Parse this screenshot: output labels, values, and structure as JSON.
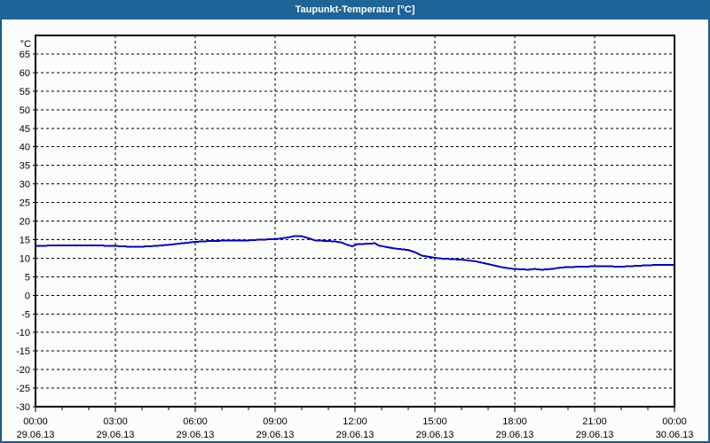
{
  "window": {
    "title": "Taupunkt-Temperatur [°C]",
    "title_bar_color": "#1E6496",
    "border_color": "#1A5A87",
    "background_color": "#FBFDFA"
  },
  "chart_data": {
    "type": "line",
    "title": "Taupunkt-Temperatur [°C]",
    "y_unit_label": "°C",
    "ylim": [
      -30,
      70
    ],
    "y_tick_step": 5,
    "y_ticks": [
      65,
      60,
      55,
      50,
      45,
      40,
      35,
      30,
      25,
      20,
      15,
      10,
      5,
      0,
      -5,
      -10,
      -15,
      -20,
      -25,
      -30
    ],
    "x_hours_range": [
      0,
      24
    ],
    "x_minor_step_hours": 1,
    "x_major_step_hours": 3,
    "grid": "dashed",
    "legend": "none",
    "line_color": "#0000CC",
    "x_major_ticks": [
      {
        "hour": 0,
        "time": "00:00",
        "date": "29.06.13"
      },
      {
        "hour": 3,
        "time": "03:00",
        "date": "29.06.13"
      },
      {
        "hour": 6,
        "time": "06:00",
        "date": "29.06.13"
      },
      {
        "hour": 9,
        "time": "09:00",
        "date": "29.06.13"
      },
      {
        "hour": 12,
        "time": "12:00",
        "date": "29.06.13"
      },
      {
        "hour": 15,
        "time": "15:00",
        "date": "29.06.13"
      },
      {
        "hour": 18,
        "time": "18:00",
        "date": "29.06.13"
      },
      {
        "hour": 21,
        "time": "21:00",
        "date": "29.06.13"
      },
      {
        "hour": 24,
        "time": "00:00",
        "date": "30.06.13"
      }
    ],
    "series": [
      {
        "x_hours": [
          0,
          0.5,
          1,
          1.5,
          2,
          2.5,
          3,
          3.5,
          4,
          4.5,
          5,
          5.5,
          6,
          6.5,
          7,
          7.5,
          8,
          8.5,
          9,
          9.5,
          9.75,
          10,
          10.25,
          10.5,
          11,
          11.25,
          11.5,
          11.75,
          11.9,
          12.1,
          12.5,
          12.75,
          12.9,
          13.25,
          13.5,
          13.75,
          14,
          14.25,
          14.5,
          14.75,
          15,
          15.25,
          15.5,
          16,
          16.25,
          16.5,
          16.75,
          17,
          17.25,
          17.5,
          17.75,
          18,
          18.25,
          18.5,
          18.75,
          19,
          19.25,
          19.5,
          19.75,
          20,
          20.5,
          21,
          21.5,
          22,
          22.5,
          23,
          23.5,
          24
        ],
        "values": [
          13.3,
          13.4,
          13.4,
          13.4,
          13.4,
          13.4,
          13.3,
          13.1,
          13.1,
          13.3,
          13.6,
          14.0,
          14.4,
          14.6,
          14.7,
          14.7,
          14.8,
          15.0,
          15.1,
          15.6,
          16.0,
          15.9,
          15.4,
          14.8,
          14.6,
          14.5,
          14.2,
          13.5,
          13.2,
          13.8,
          13.9,
          14.0,
          13.4,
          12.9,
          12.6,
          12.4,
          12.2,
          11.6,
          10.7,
          10.4,
          10.1,
          9.9,
          9.8,
          9.6,
          9.4,
          9.2,
          8.8,
          8.4,
          8.0,
          7.6,
          7.3,
          7.1,
          7.0,
          6.9,
          7.1,
          6.9,
          7.0,
          7.2,
          7.5,
          7.6,
          7.7,
          7.8,
          7.8,
          7.7,
          7.9,
          8.1,
          8.2,
          8.2
        ]
      }
    ]
  }
}
